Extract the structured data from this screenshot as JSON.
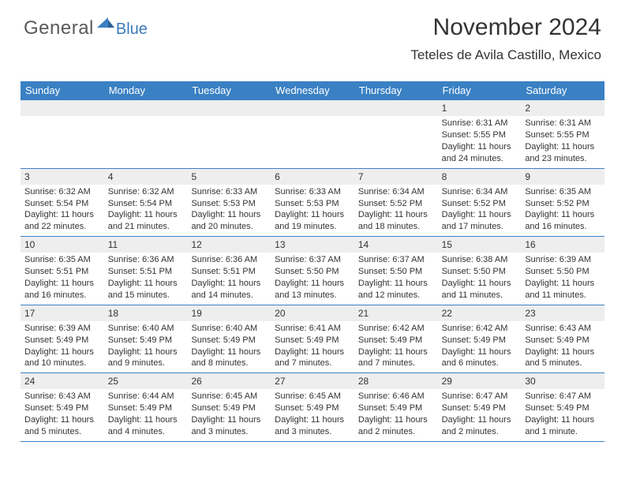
{
  "logo": {
    "general": "General",
    "blue": "Blue",
    "tri_color": "#3a81c4"
  },
  "header": {
    "month_title": "November 2024",
    "location": "Teteles de Avila Castillo, Mexico"
  },
  "colors": {
    "header_bg": "#3a81c4",
    "header_fg": "#ffffff",
    "daynum_bg": "#eeeeee",
    "text": "#333333",
    "row_border": "#3a81c4"
  },
  "day_names": [
    "Sunday",
    "Monday",
    "Tuesday",
    "Wednesday",
    "Thursday",
    "Friday",
    "Saturday"
  ],
  "weeks": [
    [
      null,
      null,
      null,
      null,
      null,
      {
        "n": "1",
        "sunrise": "Sunrise: 6:31 AM",
        "sunset": "Sunset: 5:55 PM",
        "daylight": "Daylight: 11 hours and 24 minutes."
      },
      {
        "n": "2",
        "sunrise": "Sunrise: 6:31 AM",
        "sunset": "Sunset: 5:55 PM",
        "daylight": "Daylight: 11 hours and 23 minutes."
      }
    ],
    [
      {
        "n": "3",
        "sunrise": "Sunrise: 6:32 AM",
        "sunset": "Sunset: 5:54 PM",
        "daylight": "Daylight: 11 hours and 22 minutes."
      },
      {
        "n": "4",
        "sunrise": "Sunrise: 6:32 AM",
        "sunset": "Sunset: 5:54 PM",
        "daylight": "Daylight: 11 hours and 21 minutes."
      },
      {
        "n": "5",
        "sunrise": "Sunrise: 6:33 AM",
        "sunset": "Sunset: 5:53 PM",
        "daylight": "Daylight: 11 hours and 20 minutes."
      },
      {
        "n": "6",
        "sunrise": "Sunrise: 6:33 AM",
        "sunset": "Sunset: 5:53 PM",
        "daylight": "Daylight: 11 hours and 19 minutes."
      },
      {
        "n": "7",
        "sunrise": "Sunrise: 6:34 AM",
        "sunset": "Sunset: 5:52 PM",
        "daylight": "Daylight: 11 hours and 18 minutes."
      },
      {
        "n": "8",
        "sunrise": "Sunrise: 6:34 AM",
        "sunset": "Sunset: 5:52 PM",
        "daylight": "Daylight: 11 hours and 17 minutes."
      },
      {
        "n": "9",
        "sunrise": "Sunrise: 6:35 AM",
        "sunset": "Sunset: 5:52 PM",
        "daylight": "Daylight: 11 hours and 16 minutes."
      }
    ],
    [
      {
        "n": "10",
        "sunrise": "Sunrise: 6:35 AM",
        "sunset": "Sunset: 5:51 PM",
        "daylight": "Daylight: 11 hours and 16 minutes."
      },
      {
        "n": "11",
        "sunrise": "Sunrise: 6:36 AM",
        "sunset": "Sunset: 5:51 PM",
        "daylight": "Daylight: 11 hours and 15 minutes."
      },
      {
        "n": "12",
        "sunrise": "Sunrise: 6:36 AM",
        "sunset": "Sunset: 5:51 PM",
        "daylight": "Daylight: 11 hours and 14 minutes."
      },
      {
        "n": "13",
        "sunrise": "Sunrise: 6:37 AM",
        "sunset": "Sunset: 5:50 PM",
        "daylight": "Daylight: 11 hours and 13 minutes."
      },
      {
        "n": "14",
        "sunrise": "Sunrise: 6:37 AM",
        "sunset": "Sunset: 5:50 PM",
        "daylight": "Daylight: 11 hours and 12 minutes."
      },
      {
        "n": "15",
        "sunrise": "Sunrise: 6:38 AM",
        "sunset": "Sunset: 5:50 PM",
        "daylight": "Daylight: 11 hours and 11 minutes."
      },
      {
        "n": "16",
        "sunrise": "Sunrise: 6:39 AM",
        "sunset": "Sunset: 5:50 PM",
        "daylight": "Daylight: 11 hours and 11 minutes."
      }
    ],
    [
      {
        "n": "17",
        "sunrise": "Sunrise: 6:39 AM",
        "sunset": "Sunset: 5:49 PM",
        "daylight": "Daylight: 11 hours and 10 minutes."
      },
      {
        "n": "18",
        "sunrise": "Sunrise: 6:40 AM",
        "sunset": "Sunset: 5:49 PM",
        "daylight": "Daylight: 11 hours and 9 minutes."
      },
      {
        "n": "19",
        "sunrise": "Sunrise: 6:40 AM",
        "sunset": "Sunset: 5:49 PM",
        "daylight": "Daylight: 11 hours and 8 minutes."
      },
      {
        "n": "20",
        "sunrise": "Sunrise: 6:41 AM",
        "sunset": "Sunset: 5:49 PM",
        "daylight": "Daylight: 11 hours and 7 minutes."
      },
      {
        "n": "21",
        "sunrise": "Sunrise: 6:42 AM",
        "sunset": "Sunset: 5:49 PM",
        "daylight": "Daylight: 11 hours and 7 minutes."
      },
      {
        "n": "22",
        "sunrise": "Sunrise: 6:42 AM",
        "sunset": "Sunset: 5:49 PM",
        "daylight": "Daylight: 11 hours and 6 minutes."
      },
      {
        "n": "23",
        "sunrise": "Sunrise: 6:43 AM",
        "sunset": "Sunset: 5:49 PM",
        "daylight": "Daylight: 11 hours and 5 minutes."
      }
    ],
    [
      {
        "n": "24",
        "sunrise": "Sunrise: 6:43 AM",
        "sunset": "Sunset: 5:49 PM",
        "daylight": "Daylight: 11 hours and 5 minutes."
      },
      {
        "n": "25",
        "sunrise": "Sunrise: 6:44 AM",
        "sunset": "Sunset: 5:49 PM",
        "daylight": "Daylight: 11 hours and 4 minutes."
      },
      {
        "n": "26",
        "sunrise": "Sunrise: 6:45 AM",
        "sunset": "Sunset: 5:49 PM",
        "daylight": "Daylight: 11 hours and 3 minutes."
      },
      {
        "n": "27",
        "sunrise": "Sunrise: 6:45 AM",
        "sunset": "Sunset: 5:49 PM",
        "daylight": "Daylight: 11 hours and 3 minutes."
      },
      {
        "n": "28",
        "sunrise": "Sunrise: 6:46 AM",
        "sunset": "Sunset: 5:49 PM",
        "daylight": "Daylight: 11 hours and 2 minutes."
      },
      {
        "n": "29",
        "sunrise": "Sunrise: 6:47 AM",
        "sunset": "Sunset: 5:49 PM",
        "daylight": "Daylight: 11 hours and 2 minutes."
      },
      {
        "n": "30",
        "sunrise": "Sunrise: 6:47 AM",
        "sunset": "Sunset: 5:49 PM",
        "daylight": "Daylight: 11 hours and 1 minute."
      }
    ]
  ]
}
